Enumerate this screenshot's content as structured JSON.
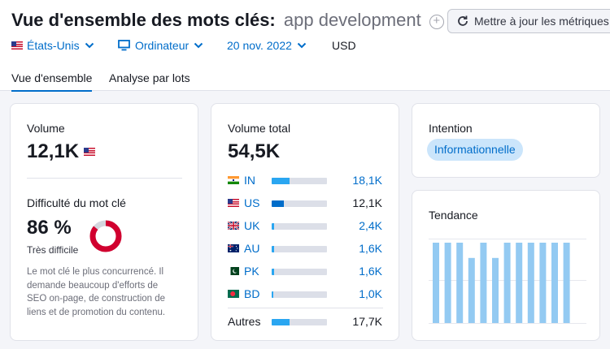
{
  "header": {
    "title": "Vue d'ensemble des mots clés:",
    "keyword": "app development",
    "update_button": "Mettre à jour les métriques"
  },
  "filters": {
    "country": "États-Unis",
    "device": "Ordinateur",
    "date": "20 nov. 2022",
    "currency": "USD"
  },
  "tabs": [
    {
      "label": "Vue d'ensemble",
      "active": true
    },
    {
      "label": "Analyse par lots",
      "active": false
    }
  ],
  "volume_card": {
    "label": "Volume",
    "value": "12,1K",
    "difficulty_label": "Difficulté du mot clé",
    "difficulty_value": "86 %",
    "difficulty_text": "Très difficile",
    "difficulty_pct": 86,
    "description_lines": [
      "Le mot clé le plus concurrencé. Il",
      "demande beaucoup d'efforts de",
      "SEO on-page, de construction de",
      "liens et de promotion du contenu."
    ],
    "colors": {
      "difficulty": "#d1002f",
      "track": "#d4d6de"
    }
  },
  "total_card": {
    "label": "Volume total",
    "value": "54,5K",
    "countries": [
      {
        "code": "IN",
        "value": "18,1K",
        "share": 0.33,
        "flag": "flag-india"
      },
      {
        "code": "US",
        "value": "12,1K",
        "share": 0.22,
        "flag": "flag-usa"
      },
      {
        "code": "UK",
        "value": "2,4K",
        "share": 0.05,
        "flag": "flag-uk"
      },
      {
        "code": "AU",
        "value": "1,6K",
        "share": 0.04,
        "flag": "flag-australia"
      },
      {
        "code": "PK",
        "value": "1,6K",
        "share": 0.04,
        "flag": "flag-pakistan"
      },
      {
        "code": "BD",
        "value": "1,0K",
        "share": 0.03,
        "flag": "flag-bangladesh"
      }
    ],
    "others": {
      "label": "Autres",
      "value": "17,7K",
      "share": 0.32
    }
  },
  "intent_card": {
    "label": "Intention",
    "intent": "Informationnelle"
  },
  "trend_card": {
    "label": "Tendance",
    "relative_heights": [
      1,
      1,
      1,
      0.81,
      1,
      0.81,
      1,
      1,
      1,
      1,
      1,
      1
    ],
    "bar_color": "#93caf2"
  },
  "colors": {
    "accent": "#006dca",
    "bar_light": "#2aa6f1"
  }
}
